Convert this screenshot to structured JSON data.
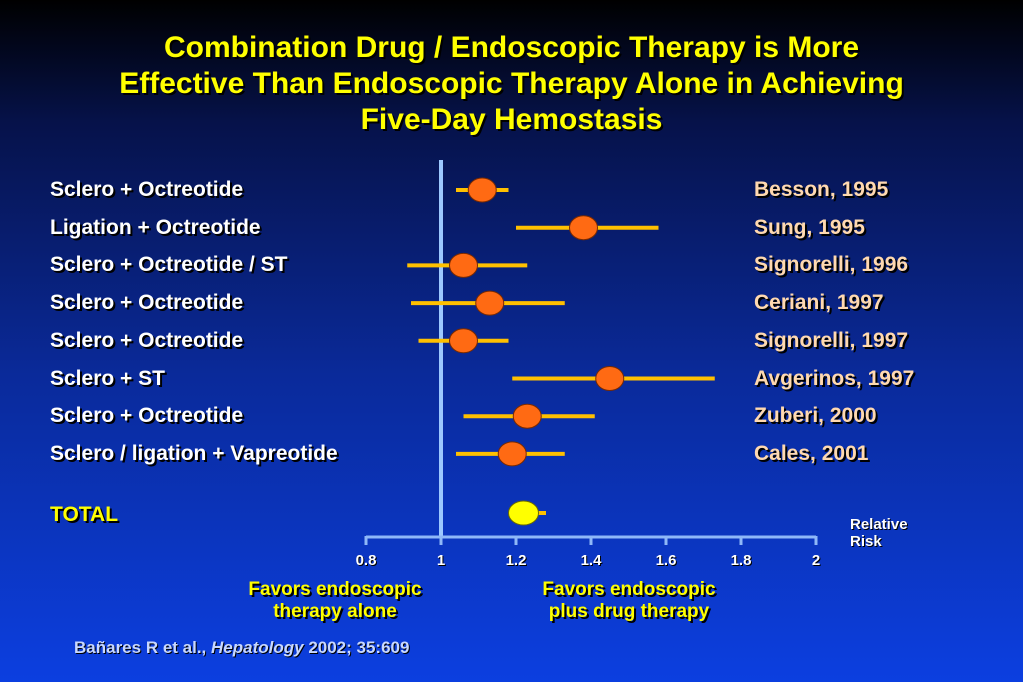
{
  "title_lines": [
    "Combination Drug / Endoscopic Therapy is More",
    "Effective Than Endoscopic Therapy Alone in Achieving",
    "Five-Day Hemostasis"
  ],
  "chart_data": {
    "type": "forest",
    "xlabel": [
      "Relative",
      "Risk"
    ],
    "xlim": [
      0.8,
      2.0
    ],
    "reference_line": 1.0,
    "ticks": [
      0.8,
      1,
      1.2,
      1.4,
      1.6,
      1.8,
      2
    ],
    "tick_labels": [
      "0.8",
      "1",
      "1.2",
      "1.4",
      "1.6",
      "1.8",
      "2"
    ],
    "studies": [
      {
        "label": "Sclero + Octreotide",
        "ref": "Besson, 1995",
        "rr": 1.11,
        "ci": [
          1.04,
          1.18
        ]
      },
      {
        "label": "Ligation + Octreotide",
        "ref": "Sung, 1995",
        "rr": 1.38,
        "ci": [
          1.2,
          1.58
        ]
      },
      {
        "label": "Sclero + Octreotide / ST",
        "ref": "Signorelli, 1996",
        "rr": 1.06,
        "ci": [
          0.91,
          1.23
        ]
      },
      {
        "label": "Sclero + Octreotide",
        "ref": "Ceriani, 1997",
        "rr": 1.13,
        "ci": [
          0.92,
          1.33
        ]
      },
      {
        "label": "Sclero + Octreotide",
        "ref": "Signorelli, 1997",
        "rr": 1.06,
        "ci": [
          0.94,
          1.18
        ]
      },
      {
        "label": "Sclero + ST",
        "ref": "Avgerinos, 1997",
        "rr": 1.45,
        "ci": [
          1.19,
          1.73
        ]
      },
      {
        "label": "Sclero + Octreotide",
        "ref": "Zuberi, 2000",
        "rr": 1.23,
        "ci": [
          1.06,
          1.41
        ]
      },
      {
        "label": "Sclero / ligation + Vapreotide",
        "ref": "Cales, 2001",
        "rr": 1.19,
        "ci": [
          1.04,
          1.33
        ]
      }
    ],
    "total": {
      "label": "TOTAL",
      "rr": 1.22,
      "ci": [
        1.19,
        1.28
      ]
    }
  },
  "favors_left": [
    "Favors endoscopic",
    "therapy alone"
  ],
  "favors_right": [
    "Favors endoscopic",
    "plus drug therapy"
  ],
  "citation": {
    "authors": "Bañares R et al.,",
    "journal": "Hepatology",
    "details": "2002; 35:609"
  },
  "colors": {
    "title": "#ffff00",
    "study_marker": "#ff6a13",
    "total_marker": "#ffff00",
    "ci_line": "#ffc000",
    "axis": "#8fb8f8",
    "reference": "#9cc8ff"
  }
}
